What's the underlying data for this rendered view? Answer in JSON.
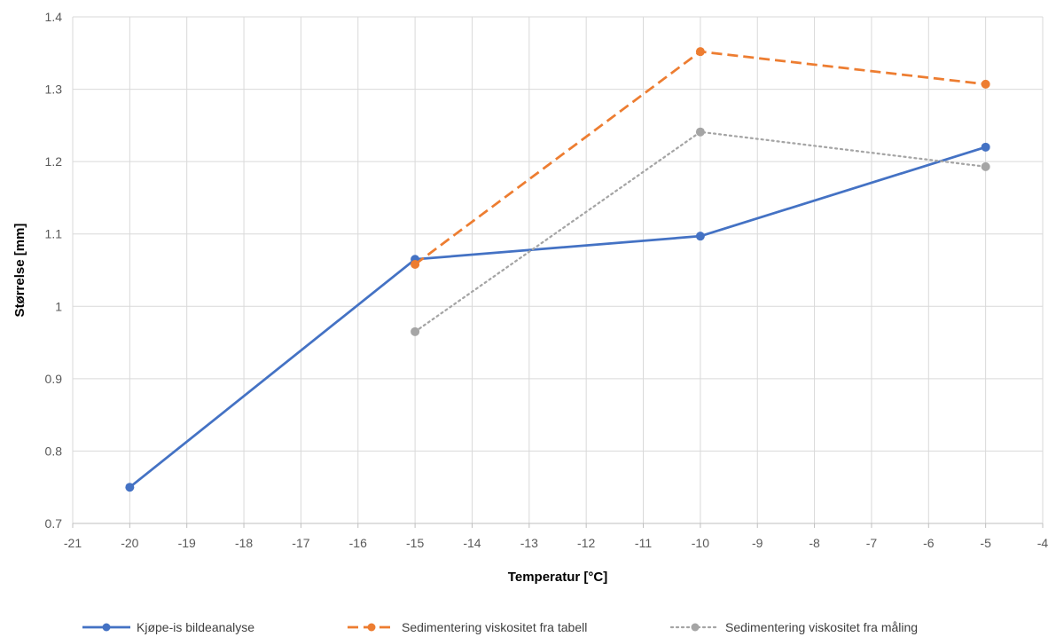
{
  "chart_data": {
    "type": "scatter",
    "xlabel": "Temperatur [°C]",
    "ylabel": "Størrelse [mm]",
    "xlim": [
      -21,
      -4
    ],
    "ylim": [
      0.7,
      1.4
    ],
    "x_ticks": [
      "-21",
      "-20",
      "-19",
      "-18",
      "-17",
      "-16",
      "-15",
      "-14",
      "-13",
      "-12",
      "-11",
      "-10",
      "-9",
      "-8",
      "-7",
      "-6",
      "-5",
      "-4"
    ],
    "y_ticks": [
      "0.7",
      "0.8",
      "0.9",
      "1",
      "1.1",
      "1.2",
      "1.3",
      "1.4"
    ],
    "grid": true,
    "legend_position": "bottom",
    "series": [
      {
        "name": "Kjøpe-is bildeanalyse",
        "color": "#4472C4",
        "style": "solid",
        "points": [
          {
            "x": -20,
            "y": 0.75
          },
          {
            "x": -15,
            "y": 1.065
          },
          {
            "x": -10,
            "y": 1.097
          },
          {
            "x": -5,
            "y": 1.22
          }
        ]
      },
      {
        "name": "Sedimentering viskositet fra tabell",
        "color": "#ED7D31",
        "style": "dashed",
        "points": [
          {
            "x": -15,
            "y": 1.058
          },
          {
            "x": -10,
            "y": 1.352
          },
          {
            "x": -5,
            "y": 1.307
          }
        ]
      },
      {
        "name": "Sedimentering viskositet fra måling",
        "color": "#A5A5A5",
        "style": "dotted",
        "points": [
          {
            "x": -15,
            "y": 0.965
          },
          {
            "x": -10,
            "y": 1.241
          },
          {
            "x": -5,
            "y": 1.193
          }
        ]
      }
    ]
  }
}
